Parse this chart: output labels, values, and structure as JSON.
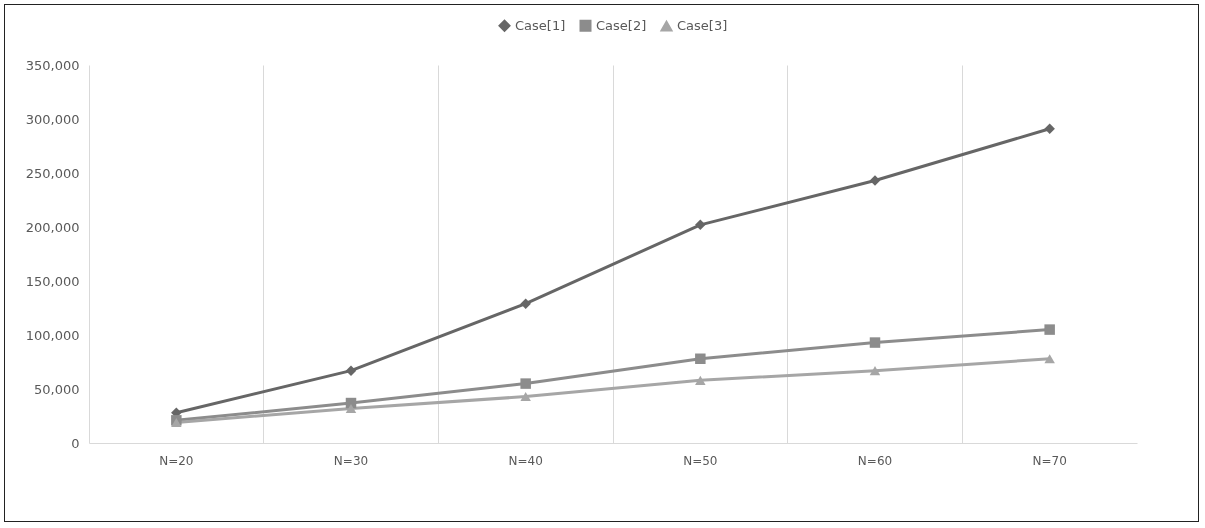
{
  "chart_data": {
    "type": "line",
    "categories": [
      "N=20",
      "N=30",
      "N=40",
      "N=50",
      "N=60",
      "N=70"
    ],
    "series": [
      {
        "name": "Case[1]",
        "color": "#666666",
        "marker": "diamond",
        "values": [
          28000,
          67000,
          129000,
          202000,
          243000,
          291000
        ]
      },
      {
        "name": "Case[2]",
        "color": "#8c8c8c",
        "marker": "square",
        "values": [
          21000,
          37000,
          55000,
          78000,
          93000,
          105000
        ]
      },
      {
        "name": "Case[3]",
        "color": "#a6a6a6",
        "marker": "triangle",
        "values": [
          19000,
          32000,
          43000,
          58000,
          67000,
          78000
        ]
      }
    ],
    "ylim": [
      0,
      350000
    ],
    "yticks": [
      0,
      {
        "value": 50000,
        "label": "50,000"
      },
      {
        "value": 100000,
        "label": "100,000"
      },
      {
        "value": 150000,
        "label": "150,000"
      },
      {
        "value": 200000,
        "label": "200,000"
      },
      {
        "value": 250000,
        "label": "250,000"
      },
      {
        "value": 300000,
        "label": "300,000"
      },
      {
        "value": 350000,
        "label": "350,000"
      }
    ],
    "grid": "x",
    "legend": "top"
  }
}
